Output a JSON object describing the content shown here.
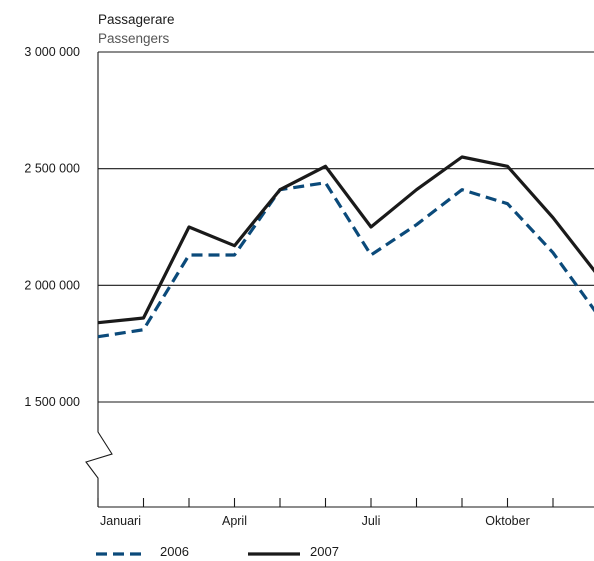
{
  "chart_data": {
    "type": "line",
    "ylabel": "Passagerare",
    "ylabel_sub": "Passengers",
    "ylim": [
      1050000,
      3000000
    ],
    "y_ticks": [
      {
        "value": 3000000,
        "label": "3 000 000"
      },
      {
        "value": 2500000,
        "label": "2 500 000"
      },
      {
        "value": 2000000,
        "label": "2 000 000"
      },
      {
        "value": 1500000,
        "label": "1 500 000"
      }
    ],
    "grid": true,
    "axis_break": true,
    "x": [
      1,
      2,
      3,
      4,
      5,
      6,
      7,
      8,
      9,
      10,
      11,
      12
    ],
    "x_tick_labels": [
      {
        "x": 1,
        "label": "Januari"
      },
      {
        "x": 4,
        "label": "April"
      },
      {
        "x": 7,
        "label": "Juli"
      },
      {
        "x": 10,
        "label": "Oktober"
      }
    ],
    "series": [
      {
        "name": "2006",
        "color": "#0b4a7a",
        "style": "dashed",
        "values": [
          1780000,
          1810000,
          2130000,
          2130000,
          2410000,
          2440000,
          2130000,
          2260000,
          2410000,
          2350000,
          2140000,
          1870000
        ]
      },
      {
        "name": "2007",
        "color": "#1a1a1a",
        "style": "solid",
        "values": [
          1840000,
          1860000,
          2250000,
          2170000,
          2410000,
          2510000,
          2250000,
          2410000,
          2550000,
          2510000,
          2290000,
          2040000
        ]
      }
    ],
    "legend_position": "bottom-left"
  }
}
